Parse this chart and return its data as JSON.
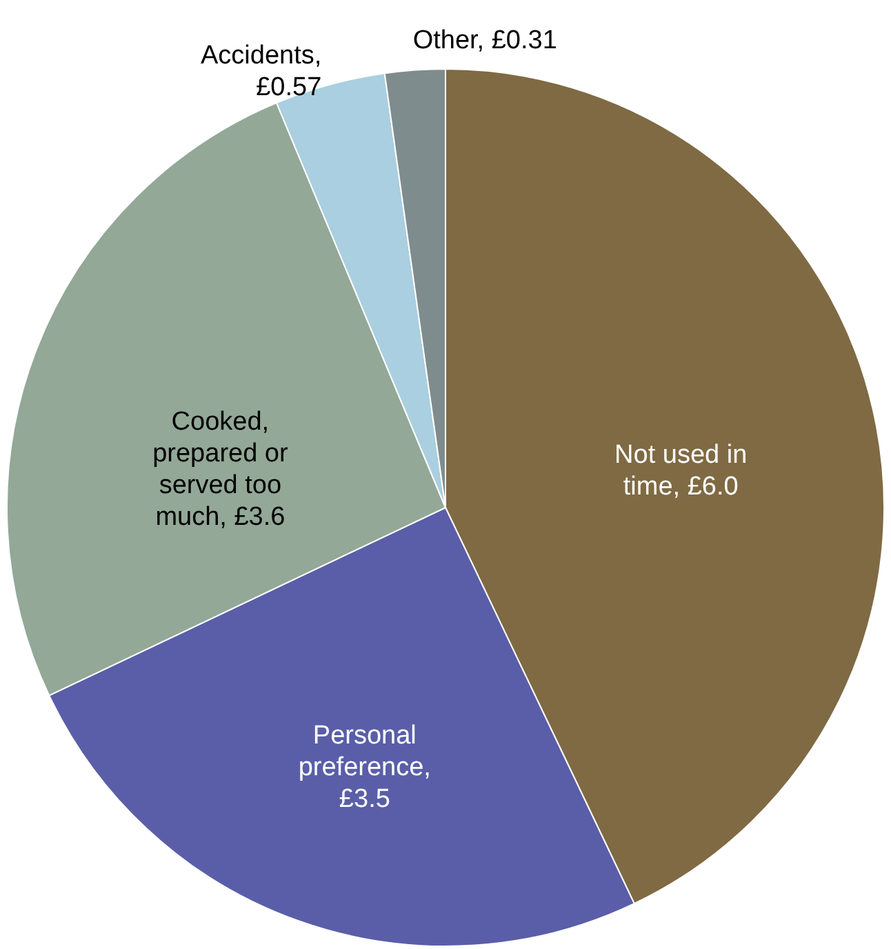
{
  "chart_data": {
    "type": "pie",
    "categories": [
      "Not used in time, £6.0",
      "Personal preference, £3.5",
      "Cooked, prepared or served too much, £3.6",
      "Accidents, £0.57",
      "Other, £0.31"
    ],
    "values": [
      6.0,
      3.5,
      3.6,
      0.57,
      0.31
    ],
    "colors": [
      "#7f6a43",
      "#5a5ea8",
      "#93a897",
      "#a9cfe0",
      "#7f8c8d"
    ],
    "legend": false
  }
}
